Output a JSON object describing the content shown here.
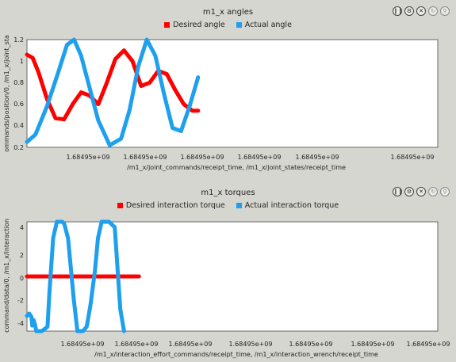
{
  "charts": [
    {
      "title": "m1_x angles",
      "legend": [
        {
          "label": "Desired angle",
          "color": "#ff0000"
        },
        {
          "label": "Actual angle",
          "color": "#1ea0ee"
        }
      ],
      "xlabel": "/m1_x/joint_commands/receipt_time, /m1_x/joint_states/receipt_time",
      "ylabel": "ommands/position/0, /m1_x/joint_sta",
      "x_tick_labels": [
        "1.68495e+09",
        "1.68495e+09",
        "1.68495e+09",
        "1.68495e+09",
        "1.68495e+09",
        "1.68495e+09"
      ],
      "y_tick_labels": [
        "0.2",
        "0.4",
        "0.6",
        "0.8",
        "1",
        "1.2"
      ]
    },
    {
      "title": "m1_x torques",
      "legend": [
        {
          "label": "Desired interaction torque",
          "color": "#ff0000"
        },
        {
          "label": "Actual interaction torque",
          "color": "#1ea0ee"
        }
      ],
      "xlabel": "/m1_x/interaction_effort_commands/receipt_time, /m1_x/interaction_wrench/receipt_time",
      "ylabel": "command/data/0, /m1_x/interaction",
      "x_tick_labels": [
        "1.68495e+09",
        "1.68495e+09",
        "1.68495e+09",
        "1.68495e+09",
        "1.68495e+09",
        "1.68495e+09",
        "1.68495e+09"
      ],
      "y_tick_labels": [
        "-4",
        "-2",
        "0",
        "2",
        "4"
      ]
    }
  ],
  "toolbar": [
    "pause",
    "settings",
    "close",
    "refresh",
    "zoom"
  ],
  "chart_data": [
    {
      "type": "line",
      "title": "m1_x angles",
      "xlabel": "/m1_x/joint_commands/receipt_time, /m1_x/joint_states/receipt_time",
      "ylabel": "ommands/position/0, /m1_x/joint_sta",
      "ylim": [
        0.2,
        1.2
      ],
      "grid": false,
      "legend_position": "top",
      "series": [
        {
          "name": "Desired angle",
          "color": "#ff0000",
          "x": [
            0,
            0.2,
            0.4,
            0.7,
            1.0,
            1.3,
            1.6,
            1.9,
            2.2,
            2.5,
            2.8,
            3.1,
            3.4,
            3.7,
            4.0,
            4.3,
            4.6,
            4.9,
            5.2,
            5.5,
            5.8,
            6.0
          ],
          "y": [
            1.06,
            1.03,
            0.9,
            0.65,
            0.47,
            0.46,
            0.6,
            0.71,
            0.68,
            0.6,
            0.8,
            1.02,
            1.1,
            1.0,
            0.77,
            0.8,
            0.91,
            0.88,
            0.73,
            0.6,
            0.54,
            0.54
          ]
        },
        {
          "name": "Actual angle",
          "color": "#1ea0ee",
          "x": [
            0,
            0.3,
            0.7,
            1.1,
            1.4,
            1.65,
            1.9,
            2.2,
            2.5,
            2.9,
            3.3,
            3.6,
            3.9,
            4.2,
            4.5,
            4.8,
            5.1,
            5.4,
            5.7,
            6.0
          ],
          "y": [
            0.25,
            0.32,
            0.58,
            0.9,
            1.15,
            1.2,
            1.05,
            0.75,
            0.45,
            0.22,
            0.28,
            0.55,
            0.95,
            1.2,
            1.05,
            0.7,
            0.38,
            0.35,
            0.58,
            0.85
          ]
        }
      ]
    },
    {
      "type": "line",
      "title": "m1_x torques",
      "xlabel": "/m1_x/interaction_effort_commands/receipt_time, /m1_x/interaction_wrench/receipt_time",
      "ylabel": "command/data/0, /m1_x/interaction",
      "ylim": [
        -5,
        5
      ],
      "grid": false,
      "legend_position": "top",
      "series": [
        {
          "name": "Desired interaction torque",
          "color": "#ff0000",
          "x": [
            0,
            3.0
          ],
          "y": [
            0,
            0
          ]
        },
        {
          "name": "Actual interaction torque",
          "color": "#1ea0ee",
          "x": [
            0,
            0.06,
            0.12,
            0.14,
            0.18,
            0.22,
            0.25,
            0.3,
            0.4,
            0.55,
            0.6,
            0.7,
            0.8,
            0.9,
            0.95,
            1.0,
            1.1,
            1.25,
            1.35,
            1.5,
            1.6,
            1.7,
            1.82,
            1.9,
            2.0,
            2.2,
            2.35,
            2.5,
            2.6
          ],
          "y": [
            -3.6,
            -3.4,
            -3.7,
            -4.5,
            -4.0,
            -4.5,
            -5.0,
            -5.0,
            -5.0,
            -4.6,
            -1.5,
            3.5,
            5.0,
            5.0,
            5.0,
            4.8,
            3.5,
            -2.0,
            -5.0,
            -5.0,
            -4.6,
            -2.6,
            0.5,
            3.5,
            5.0,
            5.0,
            4.5,
            -3.0,
            -5.0
          ]
        }
      ]
    }
  ]
}
